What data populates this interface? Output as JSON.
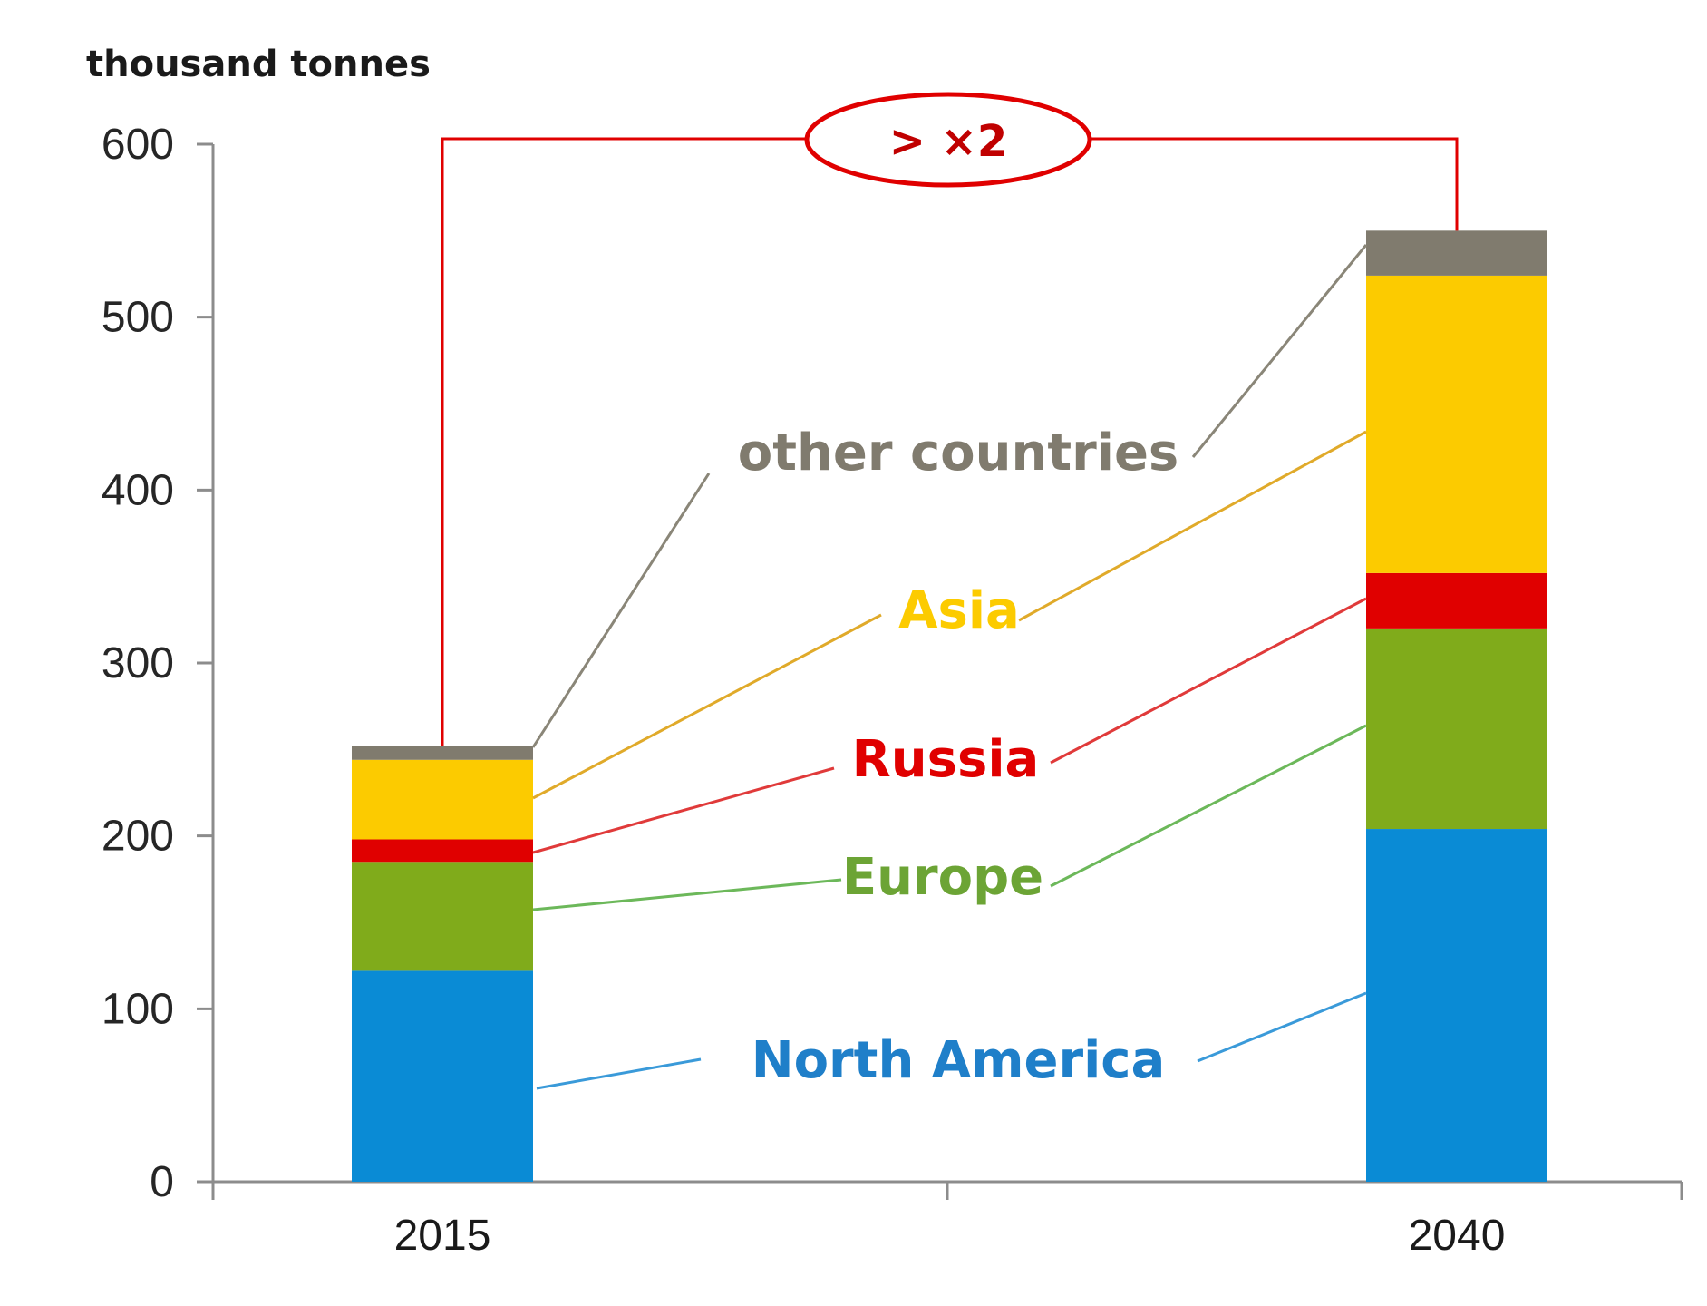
{
  "chart_data": {
    "type": "bar",
    "stacked": true,
    "ylabel": "thousand tonnes",
    "ylim": [
      0,
      600
    ],
    "yticks": [
      0,
      100,
      200,
      300,
      400,
      500,
      600
    ],
    "categories": [
      "2015",
      "2040"
    ],
    "series": [
      {
        "name": "North America",
        "color": "#0a8bd5",
        "values": [
          122,
          204
        ]
      },
      {
        "name": "Europe",
        "color": "#80ab1b",
        "values": [
          63,
          116
        ]
      },
      {
        "name": "Russia",
        "color": "#e00000",
        "values": [
          13,
          32
        ]
      },
      {
        "name": "Asia",
        "color": "#fccb00",
        "values": [
          46,
          172
        ]
      },
      {
        "name": "other countries",
        "color": "#807b6e",
        "values": [
          8,
          26
        ]
      }
    ],
    "annotation": {
      "text": "> ×2",
      "color": "#e00000"
    },
    "grid": false,
    "legend": "inline labels with leader lines"
  }
}
